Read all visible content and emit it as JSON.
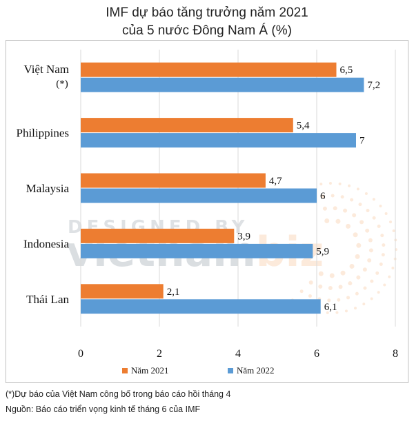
{
  "title_line1": "IMF dự báo tăng trưởng năm 2021",
  "title_line2": "của 5 nước Đông Nam Á (%)",
  "watermark": {
    "top": "DESIGNED BY",
    "brand_a": "vietnam",
    "brand_b": "biz"
  },
  "footnote": "(*)Dự báo của Việt Nam công bố trong báo cáo hồi tháng 4",
  "source": "Nguồn: Báo cáo triển vọng kinh tế tháng 6 của IMF",
  "chart_data": {
    "type": "bar",
    "orientation": "horizontal",
    "categories": [
      "Việt Nam",
      "Philippines",
      "Malaysia",
      "Indonesia",
      "Thái Lan"
    ],
    "category_notes": [
      "(*)",
      "",
      "",
      "",
      ""
    ],
    "series": [
      {
        "name": "Năm 2021",
        "color": "#ED7D31",
        "values": [
          6.5,
          5.4,
          4.7,
          3.9,
          2.1
        ],
        "labels": [
          "6,5",
          "5,4",
          "4,7",
          "3,9",
          "2,1"
        ]
      },
      {
        "name": "Năm 2022",
        "color": "#5B9BD5",
        "values": [
          7.2,
          7,
          6,
          5.9,
          6.1
        ],
        "labels": [
          "7,2",
          "7",
          "6",
          "5,9",
          "6,1"
        ]
      }
    ],
    "xlim": [
      0,
      8
    ],
    "xticks": [
      "0",
      "2",
      "4",
      "6",
      "8"
    ],
    "grid": true,
    "legend_position": "bottom"
  }
}
